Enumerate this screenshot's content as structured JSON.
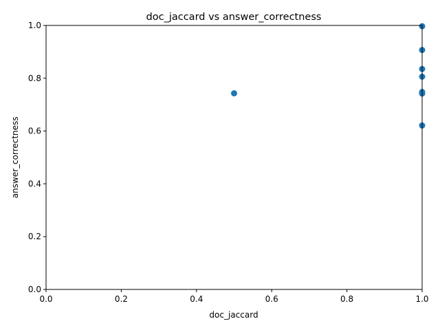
{
  "chart_data": {
    "type": "scatter",
    "title": "doc_jaccard vs answer_correctness",
    "xlabel": "doc_jaccard",
    "ylabel": "answer_correctness",
    "xlim": [
      0.0,
      1.0
    ],
    "ylim": [
      0.0,
      1.0
    ],
    "xticks": [
      "0.0",
      "0.2",
      "0.4",
      "0.6",
      "0.8",
      "1.0"
    ],
    "yticks": [
      "0.0",
      "0.2",
      "0.4",
      "0.6",
      "0.8",
      "1.0"
    ],
    "grid": false,
    "point_color": "#1f77b4",
    "points": [
      {
        "x": 0.5,
        "y": 0.743
      },
      {
        "x": 1.0,
        "y": 0.997
      },
      {
        "x": 1.0,
        "y": 0.907
      },
      {
        "x": 1.0,
        "y": 0.835
      },
      {
        "x": 1.0,
        "y": 0.806
      },
      {
        "x": 1.0,
        "y": 0.748
      },
      {
        "x": 1.0,
        "y": 0.742
      },
      {
        "x": 1.0,
        "y": 0.621
      }
    ]
  }
}
